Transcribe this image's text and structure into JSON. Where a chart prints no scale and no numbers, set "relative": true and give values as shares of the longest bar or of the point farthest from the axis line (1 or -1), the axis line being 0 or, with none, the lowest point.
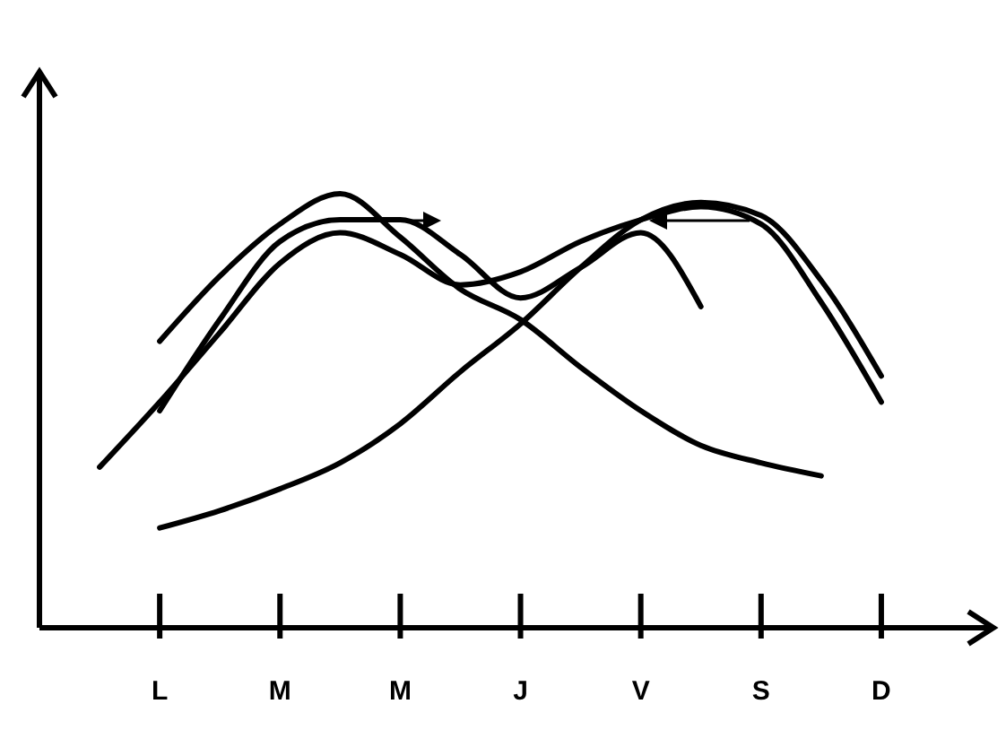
{
  "chart_data": {
    "type": "line",
    "relative": true,
    "tick_labels": "x",
    "categories": [
      null,
      null,
      "L",
      null,
      "M",
      null,
      "M",
      null,
      "J",
      null,
      "V",
      null,
      "S",
      null,
      "D",
      null
    ],
    "series": [
      {
        "color": "#000000",
        "values": [
          null,
          null,
          0.66,
          0.81,
          0.93,
          1,
          0.9,
          0.78,
          0.71,
          0.6,
          0.5,
          0.42,
          0.38,
          0.35,
          null,
          null
        ]
      },
      {
        "color": "#000000",
        "values": [
          null,
          null,
          0.5,
          0.71,
          0.89,
          0.94,
          0.94,
          0.86,
          0.76,
          0.83,
          0.91,
          0.74,
          null,
          null,
          null,
          null
        ]
      },
      {
        "color": "#000000",
        "values": [
          null,
          0.37,
          0.52,
          0.68,
          0.84,
          0.91,
          0.86,
          0.79,
          0.82,
          0.89,
          0.94,
          0.97,
          0.93,
          0.75,
          0.52,
          null
        ]
      },
      {
        "color": "#000000",
        "values": [
          null,
          null,
          0.23,
          0.27,
          0.32,
          0.38,
          0.47,
          0.59,
          0.7,
          0.83,
          0.94,
          0.98,
          0.95,
          0.8,
          0.58,
          null
        ]
      }
    ]
  }
}
